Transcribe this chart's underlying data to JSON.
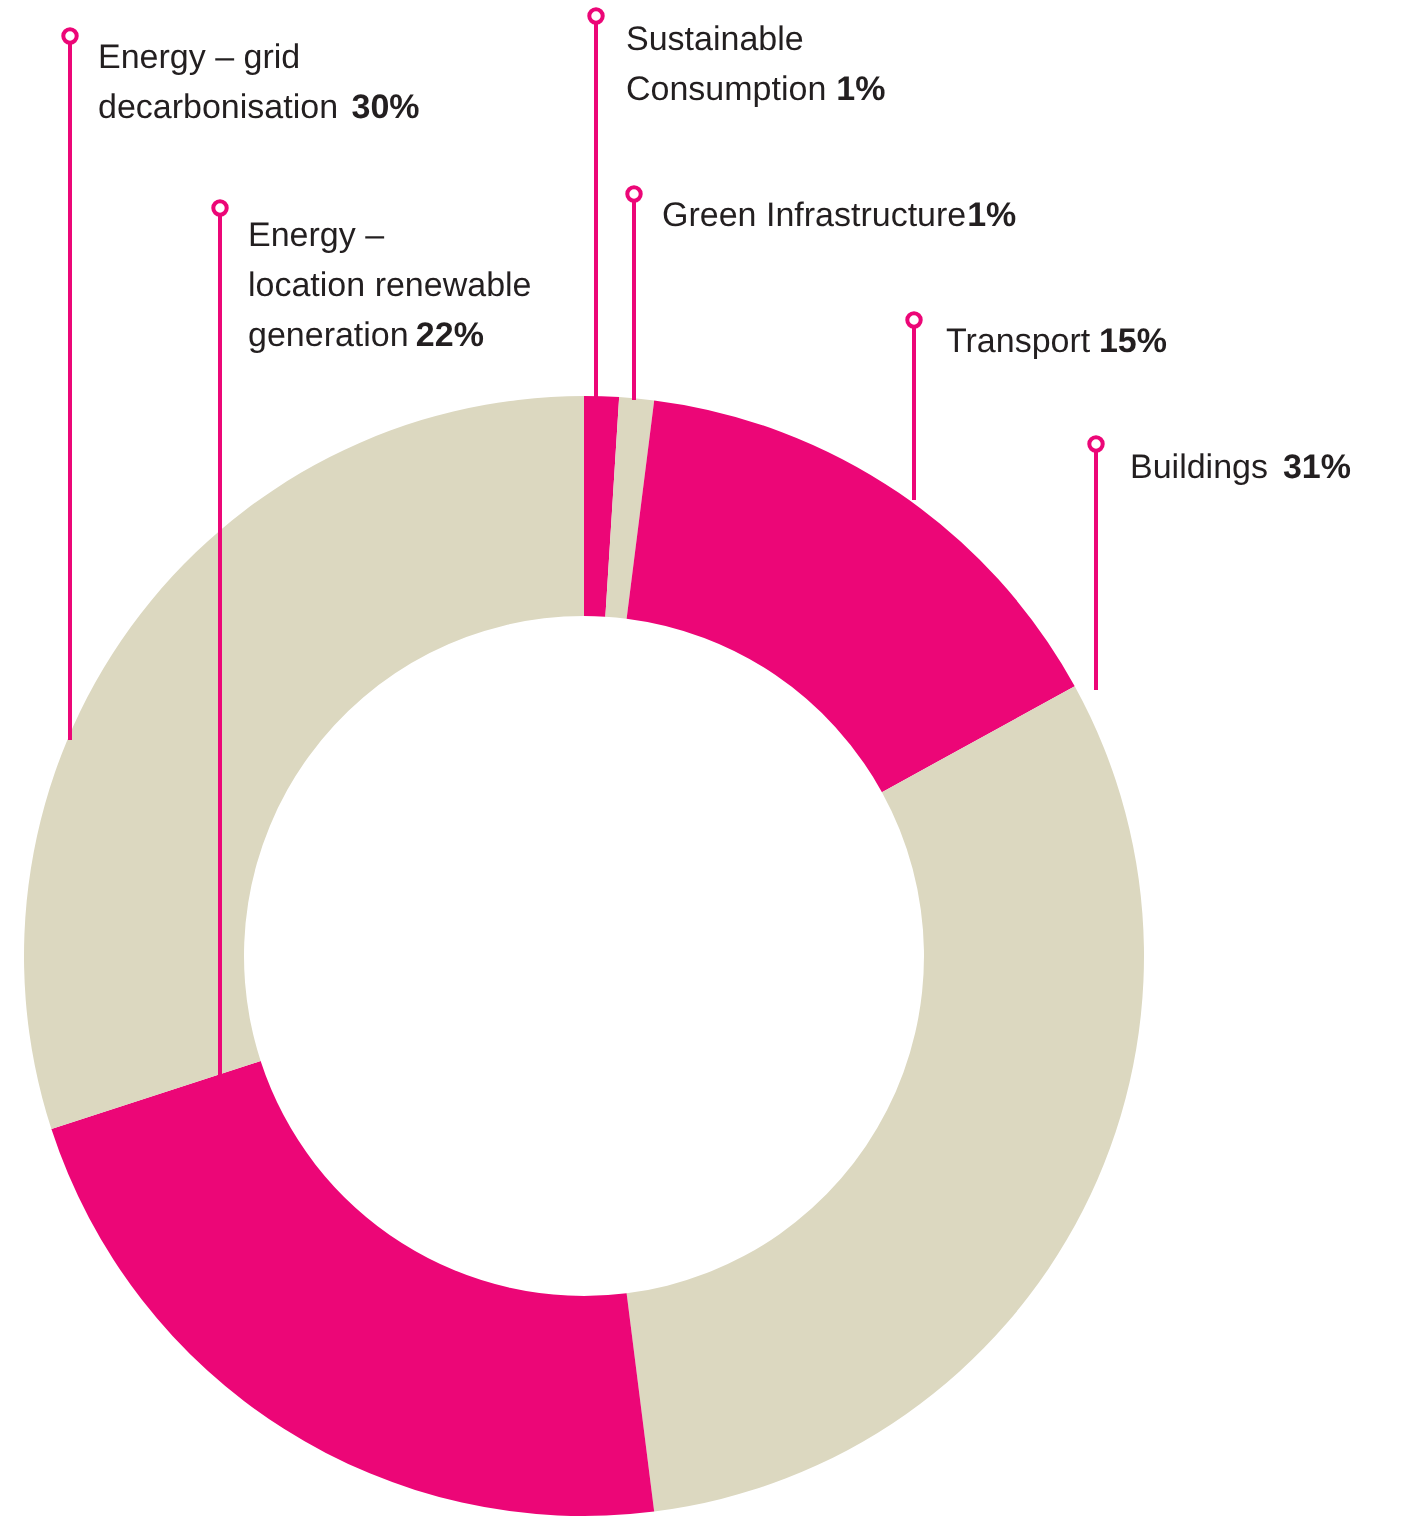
{
  "chart_data": {
    "type": "donut",
    "categories": [
      "Sustainable Consumption",
      "Green Infrastructure",
      "Transport",
      "Buildings",
      "Energy – location renewable generation",
      "Energy – grid decarbonisation"
    ],
    "values": [
      1,
      1,
      15,
      31,
      22,
      30
    ],
    "colors": [
      "#ec0677",
      "#dcd8c0",
      "#ec0677",
      "#dcd8c0",
      "#ec0677",
      "#dcd8c0"
    ],
    "value_labels": [
      "1%",
      "1%",
      "15%",
      "31%",
      "22%",
      "30%"
    ],
    "legend": "top"
  }
}
